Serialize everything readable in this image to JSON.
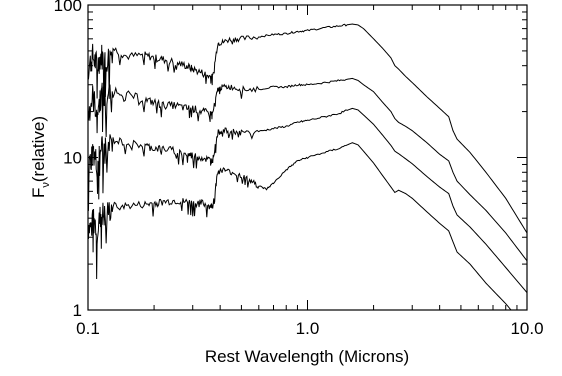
{
  "chart_data": {
    "type": "line",
    "title": "",
    "xlabel": "Rest Wavelength (Microns)",
    "ylabel": {
      "main": "F",
      "sub": "ν",
      "rest": "(relative)"
    },
    "xscale": "log",
    "yscale": "log",
    "xlim": [
      0.1,
      10.0
    ],
    "ylim": [
      1,
      100
    ],
    "x_ticks": [
      {
        "value": 0.1,
        "label": "0.1"
      },
      {
        "value": 1.0,
        "label": "1.0"
      },
      {
        "value": 10.0,
        "label": "10.0"
      }
    ],
    "y_ticks": [
      {
        "value": 1,
        "label": "1"
      },
      {
        "value": 10,
        "label": "10"
      },
      {
        "value": 100,
        "label": "100"
      }
    ],
    "grid": false,
    "line_color": "#000000",
    "series": [
      {
        "x": [
          0.09,
          0.095,
          0.1,
          0.105,
          0.11,
          0.115,
          0.12,
          0.13,
          0.15,
          0.18,
          0.2,
          0.22,
          0.25,
          0.28,
          0.3,
          0.33,
          0.36,
          0.37,
          0.39,
          0.41,
          0.45,
          0.5,
          0.6,
          0.7,
          0.8,
          0.9,
          1.0,
          1.2,
          1.4,
          1.6,
          1.7,
          1.8,
          2.0,
          2.2,
          2.4,
          2.5,
          2.6,
          2.8,
          3.0,
          3.5,
          4.0,
          4.4,
          4.6,
          4.8,
          5.5,
          6.5,
          8.0,
          10.0
        ],
        "y": [
          35,
          45,
          38,
          46,
          40,
          47,
          42,
          52,
          46,
          47,
          45,
          44,
          42,
          40,
          38,
          36,
          34,
          34,
          56,
          57,
          60,
          60,
          62,
          64,
          65,
          67,
          68,
          71,
          73,
          75,
          74,
          70,
          60,
          52,
          45,
          40,
          38,
          34,
          31,
          25,
          21,
          18.5,
          15,
          13.2,
          10.8,
          8,
          5.4,
          3.2
        ]
      },
      {
        "x": [
          0.09,
          0.095,
          0.1,
          0.105,
          0.11,
          0.115,
          0.12,
          0.13,
          0.15,
          0.18,
          0.2,
          0.22,
          0.25,
          0.28,
          0.3,
          0.33,
          0.36,
          0.37,
          0.39,
          0.41,
          0.45,
          0.5,
          0.6,
          0.7,
          0.8,
          0.9,
          1.0,
          1.2,
          1.4,
          1.6,
          1.7,
          1.8,
          2.0,
          2.2,
          2.4,
          2.5,
          2.6,
          2.8,
          3.0,
          3.5,
          4.0,
          4.4,
          4.6,
          4.8,
          5.5,
          6.5,
          8.0,
          10.0
        ],
        "y": [
          18,
          22,
          19,
          25,
          20,
          26,
          24,
          28,
          26,
          24,
          23,
          22,
          22,
          21,
          21,
          20,
          19.5,
          19.5,
          28,
          29,
          29,
          28,
          28,
          29,
          29,
          30,
          30,
          31,
          32,
          33,
          32,
          30,
          27,
          23,
          20,
          18,
          17,
          16,
          15,
          12.5,
          10.5,
          9.5,
          8,
          7,
          5.7,
          4.5,
          3.2,
          2.1
        ]
      },
      {
        "x": [
          0.09,
          0.095,
          0.1,
          0.105,
          0.11,
          0.115,
          0.12,
          0.13,
          0.15,
          0.18,
          0.2,
          0.22,
          0.25,
          0.28,
          0.3,
          0.33,
          0.36,
          0.37,
          0.39,
          0.41,
          0.45,
          0.5,
          0.6,
          0.7,
          0.8,
          0.9,
          1.0,
          1.2,
          1.4,
          1.6,
          1.7,
          1.8,
          2.0,
          2.2,
          2.4,
          2.5,
          2.6,
          2.8,
          3.0,
          3.5,
          4.0,
          4.4,
          4.6,
          4.8,
          5.5,
          6.5,
          8.0,
          10.0
        ],
        "y": [
          7,
          10,
          8,
          11,
          9,
          12,
          11,
          13,
          12.5,
          12,
          11.5,
          11.5,
          11,
          10.5,
          10.3,
          10,
          9.6,
          9.6,
          14.5,
          15,
          15,
          14.5,
          14.8,
          15.5,
          16,
          17,
          17.5,
          18.5,
          19.5,
          21,
          20.5,
          19,
          16.5,
          14,
          12,
          11,
          10.6,
          9.8,
          9.1,
          7.5,
          6.4,
          5.8,
          4.8,
          4.2,
          3.5,
          2.7,
          1.9,
          1.3
        ]
      },
      {
        "x": [
          0.09,
          0.095,
          0.1,
          0.105,
          0.11,
          0.115,
          0.12,
          0.13,
          0.15,
          0.18,
          0.2,
          0.22,
          0.25,
          0.28,
          0.3,
          0.33,
          0.36,
          0.37,
          0.39,
          0.41,
          0.45,
          0.5,
          0.55,
          0.6,
          0.65,
          0.7,
          0.8,
          0.9,
          1.0,
          1.2,
          1.4,
          1.6,
          1.7,
          1.8,
          2.0,
          2.2,
          2.4,
          2.5,
          2.6,
          2.8,
          3.0,
          3.5,
          4.0,
          4.4,
          4.6,
          4.8,
          5.5,
          6.5,
          8.0,
          10.0
        ],
        "y": [
          2.5,
          3.8,
          2.8,
          4,
          3.2,
          4.3,
          4,
          4.8,
          4.8,
          4.9,
          5,
          5.1,
          5.2,
          5.1,
          5,
          5,
          4.8,
          4.8,
          8,
          8.3,
          8,
          7.6,
          7,
          6.5,
          6.2,
          6.8,
          8.3,
          9.5,
          10,
          10.8,
          11.5,
          12.5,
          12.1,
          11,
          9.2,
          7.6,
          6.4,
          5.9,
          6.1,
          5.8,
          5.4,
          4.4,
          3.7,
          3.3,
          2.8,
          2.4,
          2,
          1.5,
          1.1,
          0.75
        ]
      }
    ]
  }
}
